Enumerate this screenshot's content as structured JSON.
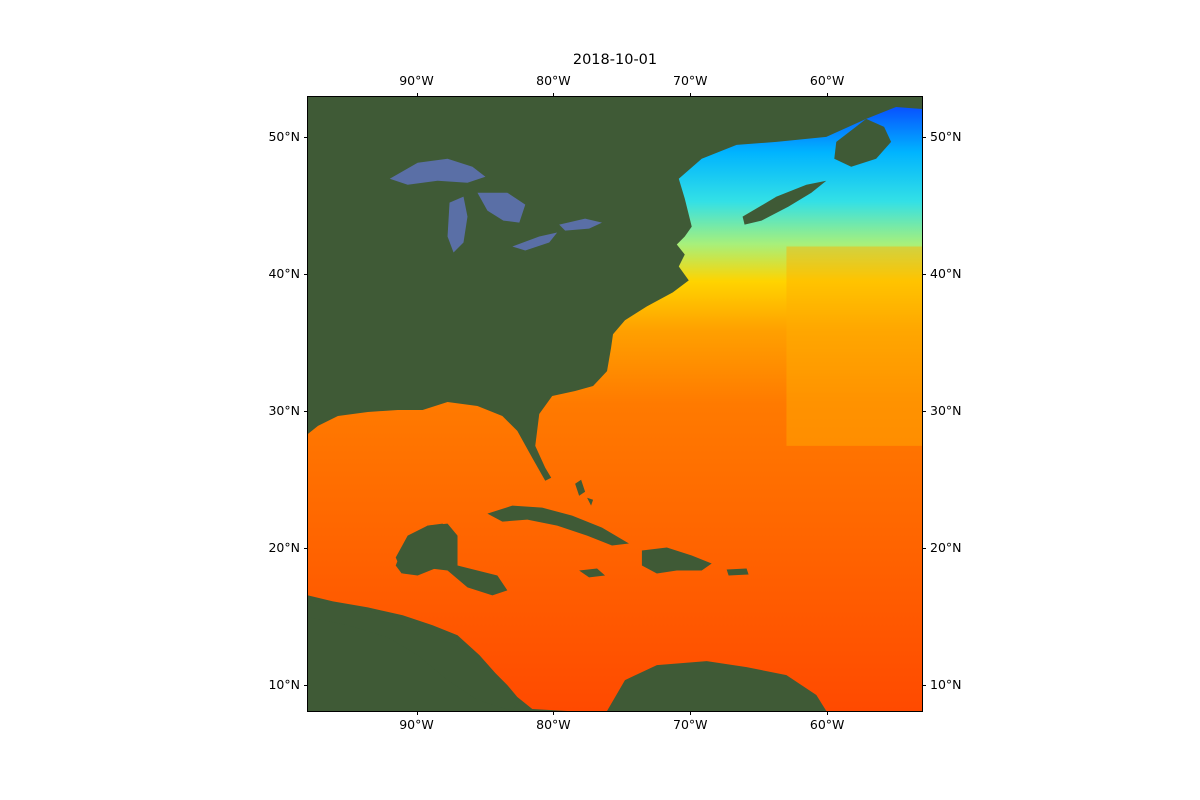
{
  "map": {
    "title": "2018-10-01",
    "lon_range": [
      -98,
      -53
    ],
    "lat_range": [
      8,
      53
    ],
    "lon_ticks": [
      {
        "value": -90,
        "label": "90°W"
      },
      {
        "value": -80,
        "label": "80°W"
      },
      {
        "value": -70,
        "label": "70°W"
      },
      {
        "value": -60,
        "label": "60°W"
      }
    ],
    "lat_ticks": [
      {
        "value": 50,
        "label": "50°N"
      },
      {
        "value": 40,
        "label": "40°N"
      },
      {
        "value": 30,
        "label": "30°N"
      },
      {
        "value": 20,
        "label": "20°N"
      },
      {
        "value": 10,
        "label": "10°N"
      }
    ],
    "colors": {
      "land": "#3f5a36",
      "land_dark": "#2f4a2c",
      "lakes": "#5a6fa6",
      "warm": "#ff4a00",
      "mid": "#ff8c00",
      "yellow": "#ffd400",
      "cyan": "#33e0e6",
      "blue": "#0a3cff"
    }
  }
}
